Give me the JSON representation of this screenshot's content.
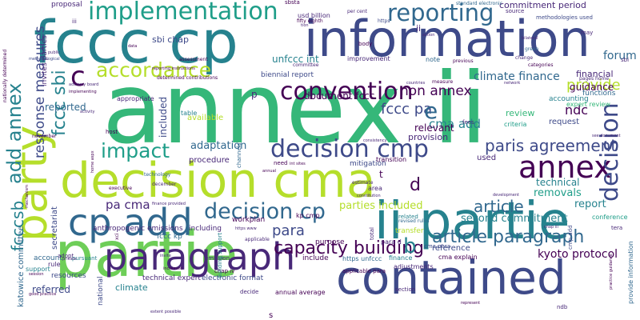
{
  "colors": {
    "background": "#ffffff",
    "palette": [
      "#440154",
      "#482878",
      "#3e4a89",
      "#31688e",
      "#26828e",
      "#1f9e89",
      "#35b779",
      "#6ece58",
      "#b5de2b",
      "#fde725"
    ]
  },
  "words": [
    {
      "text": "annex ii"
    },
    {
      "text": "information"
    },
    {
      "text": "fccc cp"
    },
    {
      "text": "decision cma"
    },
    {
      "text": "partie"
    },
    {
      "text": "contained"
    },
    {
      "text": "ii partie"
    },
    {
      "text": "party"
    },
    {
      "text": "paragraph"
    },
    {
      "text": "cp add"
    },
    {
      "text": "convention"
    },
    {
      "text": "implementation"
    },
    {
      "text": "reporting"
    },
    {
      "text": "decision cmp"
    },
    {
      "text": "annex"
    },
    {
      "text": "decision"
    },
    {
      "text": "decision cp"
    },
    {
      "text": "accordance"
    },
    {
      "text": "impact"
    },
    {
      "text": "add annex"
    },
    {
      "text": "fccc sbi"
    },
    {
      "text": "paris agreement"
    },
    {
      "text": "article paragraph"
    },
    {
      "text": "article"
    },
    {
      "text": "capacity building"
    },
    {
      "text": "provide"
    },
    {
      "text": "fccc pa"
    },
    {
      "text": "non annex"
    },
    {
      "text": "cma add"
    },
    {
      "text": "climate finance"
    },
    {
      "text": "ndc"
    },
    {
      "text": "forum"
    },
    {
      "text": "response measures"
    },
    {
      "text": "fcccsb"
    },
    {
      "text": "pa cma"
    },
    {
      "text": "kyoto protocol"
    },
    {
      "text": "second commitment"
    },
    {
      "text": "parties included"
    },
    {
      "text": "removals"
    },
    {
      "text": "adaptation"
    },
    {
      "text": "technical"
    },
    {
      "text": "para"
    },
    {
      "text": "document fccc"
    },
    {
      "text": "commitment period"
    },
    {
      "text": "sbi chap"
    },
    {
      "text": "unfccc int"
    },
    {
      "text": "biennial report"
    },
    {
      "text": "relevant"
    },
    {
      "text": "provision"
    },
    {
      "text": "reported"
    },
    {
      "text": "included"
    },
    {
      "text": "referred"
    },
    {
      "text": "review"
    },
    {
      "text": "guidance"
    },
    {
      "text": "financial"
    },
    {
      "text": "accounting"
    },
    {
      "text": "functions"
    },
    {
      "text": "expert review"
    },
    {
      "text": "request"
    },
    {
      "text": "criteria"
    },
    {
      "text": "available"
    },
    {
      "text": "procedure"
    },
    {
      "text": "workplan"
    },
    {
      "text": "mitigation"
    },
    {
      "text": "transfer"
    },
    {
      "text": "report"
    },
    {
      "text": "conference"
    },
    {
      "text": "reference"
    },
    {
      "text": "cma explain"
    },
    {
      "text": "adjustments"
    },
    {
      "text": "resources"
    },
    {
      "text": "support"
    },
    {
      "text": "rule"
    },
    {
      "text": "account"
    },
    {
      "text": "secretariat"
    },
    {
      "text": "katowice committee"
    },
    {
      "text": "climate"
    },
    {
      "text": "technical expert"
    },
    {
      "text": "electronic format"
    },
    {
      "text": "anthropogenic emissions"
    },
    {
      "text": "fccc kp"
    },
    {
      "text": "including"
    },
    {
      "text": "chap iv"
    },
    {
      "text": "emission"
    },
    {
      "text": "include"
    },
    {
      "text": "https unfccc"
    },
    {
      "text": "purpose"
    },
    {
      "text": "para d"
    },
    {
      "text": "finance"
    },
    {
      "text": "cma para"
    },
    {
      "text": "applicable para"
    },
    {
      "text": "section"
    },
    {
      "text": "annual average"
    },
    {
      "text": "decide"
    },
    {
      "text": "national"
    },
    {
      "text": "total"
    },
    {
      "text": "kp cmp"
    },
    {
      "text": "related"
    },
    {
      "text": "revised rules"
    },
    {
      "text": "area"
    },
    {
      "text": "estimate"
    },
    {
      "text": "need"
    },
    {
      "text": "used"
    },
    {
      "text": "transition"
    },
    {
      "text": "fees"
    },
    {
      "text": "host"
    },
    {
      "text": "november"
    },
    {
      "text": "appropriate"
    },
    {
      "text": "table"
    },
    {
      "text": "channels"
    },
    {
      "text": "technology"
    },
    {
      "text": "december"
    },
    {
      "text": "building support"
    },
    {
      "text": "executive"
    },
    {
      "text": "adopt"
    },
    {
      "text": "pursuant"
    },
    {
      "text": "invites parties"
    },
    {
      "text": "methodological"
    },
    {
      "text": "proposal"
    },
    {
      "text": "usd billion"
    },
    {
      "text": "fifty eighth"
    },
    {
      "text": "per cent"
    },
    {
      "text": "assessment"
    },
    {
      "text": "improvement"
    },
    {
      "text": "note"
    },
    {
      "text": "previous"
    },
    {
      "text": "standard electronic"
    },
    {
      "text": "https"
    },
    {
      "text": "source"
    },
    {
      "text": "methodologies used"
    },
    {
      "text": "may"
    },
    {
      "text": "bilateral"
    },
    {
      "text": "green"
    },
    {
      "text": "change"
    },
    {
      "text": "categories"
    },
    {
      "text": "pages home"
    },
    {
      "text": "network"
    },
    {
      "text": "countries"
    },
    {
      "text": "measure"
    },
    {
      "text": "committee"
    },
    {
      "text": "iii"
    },
    {
      "text": "body"
    },
    {
      "text": "action"
    },
    {
      "text": "tera"
    },
    {
      "text": "cmp add"
    },
    {
      "text": "provide information"
    },
    {
      "text": "practice guidance"
    },
    {
      "text": "ndb"
    },
    {
      "text": "represent"
    },
    {
      "text": "extent possible"
    },
    {
      "text": "applicable"
    },
    {
      "text": "increased"
    },
    {
      "text": "session"
    },
    {
      "text": "good practice"
    },
    {
      "text": "private"
    },
    {
      "text": "invite"
    },
    {
      "text": "xci"
    },
    {
      "text": "int sites"
    },
    {
      "text": "consistency"
    },
    {
      "text": "see document"
    },
    {
      "text": "b"
    },
    {
      "text": "e"
    },
    {
      "text": "c"
    },
    {
      "text": "d"
    },
    {
      "text": "p"
    },
    {
      "text": "t"
    },
    {
      "text": "s"
    },
    {
      "text": "ii"
    },
    {
      "text": "sbi"
    },
    {
      "text": "sbsta"
    },
    {
      "text": "reporting instructions"
    },
    {
      "text": "tion"
    },
    {
      "text": "determined contributions"
    },
    {
      "text": "advisory board"
    },
    {
      "text": "implementing"
    },
    {
      "text": "activity"
    },
    {
      "text": "public"
    },
    {
      "text": "nationally determined"
    },
    {
      "text": "annual"
    },
    {
      "text": "constitution"
    },
    {
      "text": "development"
    },
    {
      "text": "home aspx"
    },
    {
      "text": "chap iii"
    },
    {
      "text": "mechanism"
    },
    {
      "text": "https www"
    },
    {
      "text": "finance provided"
    },
    {
      "text": "data"
    }
  ]
}
